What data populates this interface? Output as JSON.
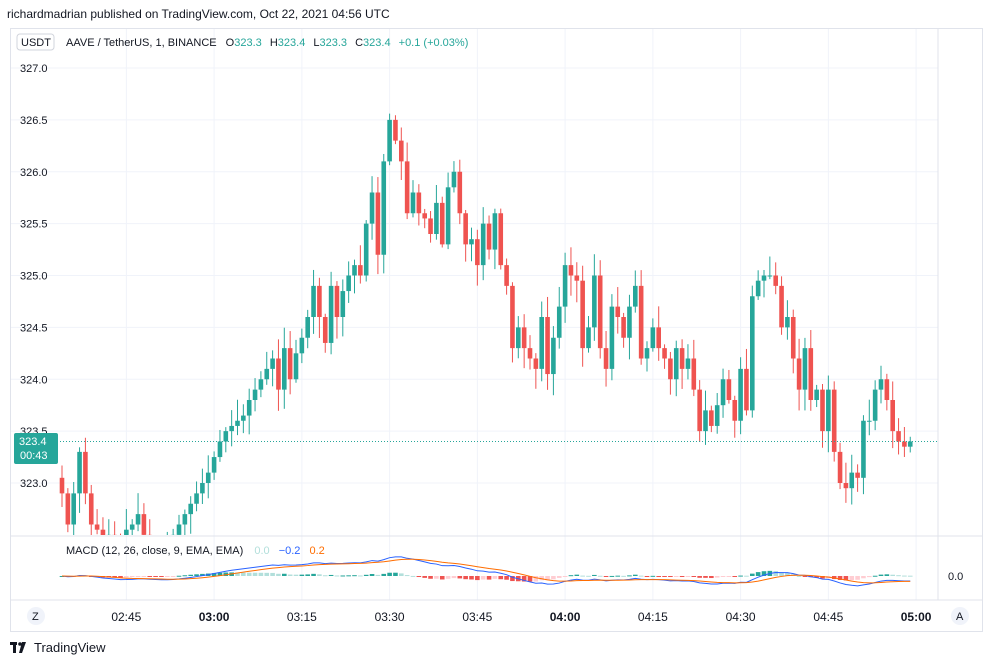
{
  "header": {
    "published": "richardmadrian published on TradingView.com, Oct 22, 2021 04:56 UTC"
  },
  "symbol": {
    "currency_button": "USDT",
    "title": "AAVE / TetherUS, 1, BINANCE",
    "o_label": "O",
    "o_value": "323.3",
    "h_label": "H",
    "h_value": "323.4",
    "l_label": "L",
    "l_value": "323.3",
    "c_label": "C",
    "c_value": "323.4",
    "change": "+0.1 (+0.03%)"
  },
  "price_tag": {
    "price": "323.4",
    "countdown": "00:43"
  },
  "macd": {
    "label": "MACD (12, 26, close, 9, EMA, EMA)",
    "hist_value": "0.0",
    "macd_value": "−0.2",
    "signal_value": "0.2",
    "axis_label": "0.0"
  },
  "controls": {
    "left_button": "Z",
    "right_button": "A"
  },
  "footer": {
    "brand": "TradingView"
  },
  "colors": {
    "up": "#26a69a",
    "down": "#ef5350",
    "macd_line": "#2962ff",
    "signal_line": "#ff6d00",
    "hist_up_strong": "#26a69a",
    "hist_up_weak": "#b2dfdb",
    "hist_down_strong": "#ef5350",
    "hist_down_weak": "#ffcdd2"
  },
  "chart_data": {
    "type": "candlestick",
    "title": "AAVE / TetherUS, 1, BINANCE",
    "ylim": [
      322.5,
      327.2
    ],
    "y_ticks": [
      "323.0",
      "323.5",
      "324.0",
      "324.5",
      "325.0",
      "325.5",
      "326.0",
      "326.5",
      "327.0"
    ],
    "x_ticks": [
      {
        "label": "02:45",
        "index": 11,
        "bold": false
      },
      {
        "label": "03:00",
        "index": 26,
        "bold": true
      },
      {
        "label": "03:15",
        "index": 41,
        "bold": false
      },
      {
        "label": "03:30",
        "index": 56,
        "bold": false
      },
      {
        "label": "03:45",
        "index": 71,
        "bold": false
      },
      {
        "label": "04:00",
        "index": 86,
        "bold": true
      },
      {
        "label": "04:15",
        "index": 101,
        "bold": false
      },
      {
        "label": "04:30",
        "index": 116,
        "bold": false
      },
      {
        "label": "04:45",
        "index": 131,
        "bold": false
      },
      {
        "label": "05:00",
        "index": 146,
        "bold": true
      }
    ],
    "last_price": 323.4,
    "series_close": [
      322.9,
      322.6,
      322.9,
      323.3,
      322.9,
      322.6,
      322.55,
      322.4,
      322.5,
      322.45,
      322.3,
      322.55,
      322.6,
      322.7,
      322.5,
      322.4,
      322.35,
      322.3,
      322.4,
      322.5,
      322.6,
      322.7,
      322.8,
      322.9,
      323.0,
      323.1,
      323.25,
      323.4,
      323.5,
      323.55,
      323.6,
      323.65,
      323.8,
      323.9,
      324.0,
      324.1,
      324.2,
      323.9,
      324.3,
      324.0,
      324.25,
      324.4,
      324.6,
      324.9,
      324.6,
      324.35,
      324.9,
      324.6,
      324.85,
      325.0,
      325.1,
      325.0,
      325.5,
      325.8,
      325.2,
      326.1,
      326.5,
      326.3,
      326.1,
      325.6,
      325.8,
      325.6,
      325.55,
      325.4,
      325.7,
      325.3,
      325.85,
      326.0,
      325.6,
      325.3,
      325.35,
      325.1,
      325.5,
      325.25,
      325.6,
      325.1,
      324.9,
      324.3,
      324.5,
      324.3,
      324.2,
      324.1,
      324.6,
      324.05,
      324.4,
      324.7,
      325.1,
      325.0,
      324.95,
      324.3,
      324.5,
      325.0,
      324.3,
      324.1,
      324.7,
      324.6,
      324.4,
      324.7,
      324.9,
      324.2,
      324.3,
      324.5,
      324.3,
      324.2,
      324.0,
      324.3,
      324.1,
      324.2,
      323.9,
      323.5,
      323.7,
      323.55,
      323.75,
      324.0,
      323.8,
      323.6,
      324.1,
      323.7,
      324.8,
      324.95,
      325.0,
      325.0,
      324.9,
      324.5,
      324.6,
      324.2,
      323.9,
      324.3,
      323.8,
      323.9,
      323.5,
      323.9,
      323.3,
      323.0,
      322.95,
      323.1,
      323.05,
      323.6,
      323.6,
      323.9,
      324.0,
      323.8,
      323.5,
      323.4,
      323.35,
      323.4
    ]
  }
}
